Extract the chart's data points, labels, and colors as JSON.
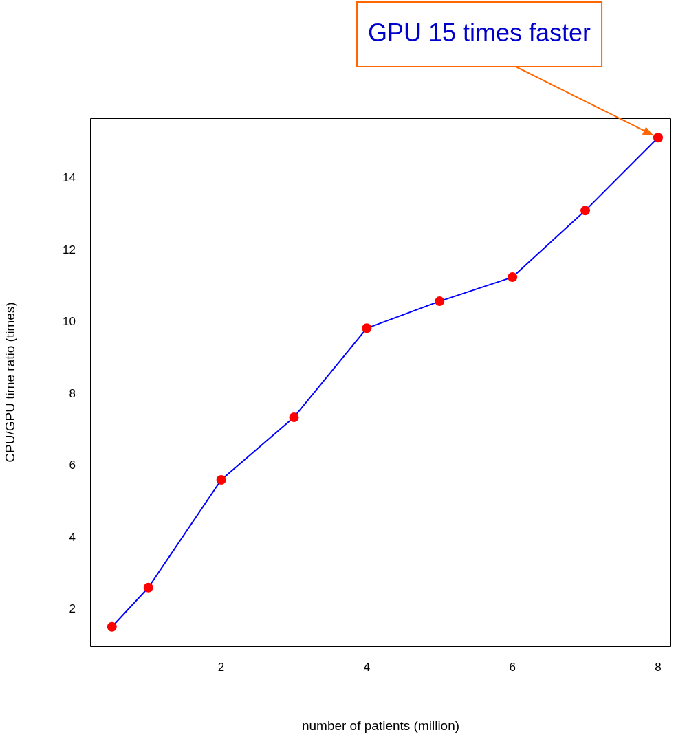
{
  "chart_data": {
    "type": "line",
    "xlabel": "number of patients (million)",
    "ylabel": "CPU/GPU time ratio (times)",
    "x": [
      0.5,
      1,
      2,
      3,
      4,
      5,
      6,
      7,
      8
    ],
    "series": [
      {
        "color": "#0000ff",
        "colors": [
          "#ff0000",
          "#ff0000",
          "#ff0000",
          "#ff0000",
          "#ff0000",
          "#ff0000",
          "#ff0000",
          "#ff0000",
          "#ff0000"
        ],
        "values": [
          1.52,
          2.61,
          5.61,
          7.35,
          9.83,
          10.58,
          11.25,
          13.1,
          15.13
        ]
      }
    ],
    "xlim": [
      0.2,
      8.18
    ],
    "xticks": [
      2,
      4,
      6,
      8
    ],
    "ylim": [
      0.98,
      15.67
    ],
    "yticks": [
      2,
      4,
      6,
      8,
      10,
      12,
      14
    ],
    "annotations": [
      {
        "text": "GPU 15 times faster",
        "x": 8,
        "y": 15.13
      }
    ],
    "grid": false,
    "legend": false,
    "marker": "circle",
    "line_style": "solid"
  }
}
